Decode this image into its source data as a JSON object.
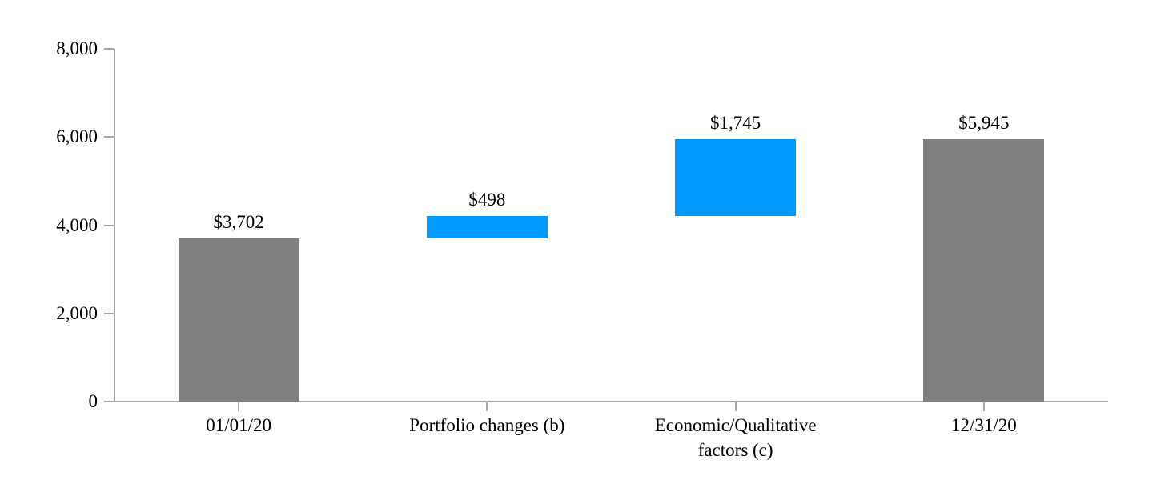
{
  "chart_data": {
    "type": "waterfall",
    "title": "",
    "xlabel": "",
    "ylabel": "",
    "grid": false,
    "legend": "none",
    "categories": [
      "01/01/20",
      "Portfolio changes (b)",
      "Economic/Qualitative factors (c)",
      "12/31/20"
    ],
    "bars": [
      {
        "category": "01/01/20",
        "label": "$3,702",
        "base": 0,
        "value": 3702,
        "role": "total"
      },
      {
        "category": "Portfolio changes (b)",
        "label": "$498",
        "base": 3702,
        "value": 498,
        "role": "increase"
      },
      {
        "category": "Economic/Qualitative factors (c)",
        "label": "$1,745",
        "base": 4200,
        "value": 1745,
        "role": "increase"
      },
      {
        "category": "12/31/20",
        "label": "$5,945",
        "base": 0,
        "value": 5945,
        "role": "total"
      }
    ],
    "y_axis": {
      "ylim": [
        0,
        8000
      ],
      "ticks": [
        0,
        2000,
        4000,
        6000,
        8000
      ],
      "tick_labels": [
        "0",
        "2,000",
        "4,000",
        "6,000",
        "8,000"
      ]
    },
    "colors": {
      "total_bar": "#808080",
      "change_bar": "#0099ff",
      "axis": "#a6a6a6",
      "text": "#000000",
      "background": "#ffffff"
    }
  }
}
